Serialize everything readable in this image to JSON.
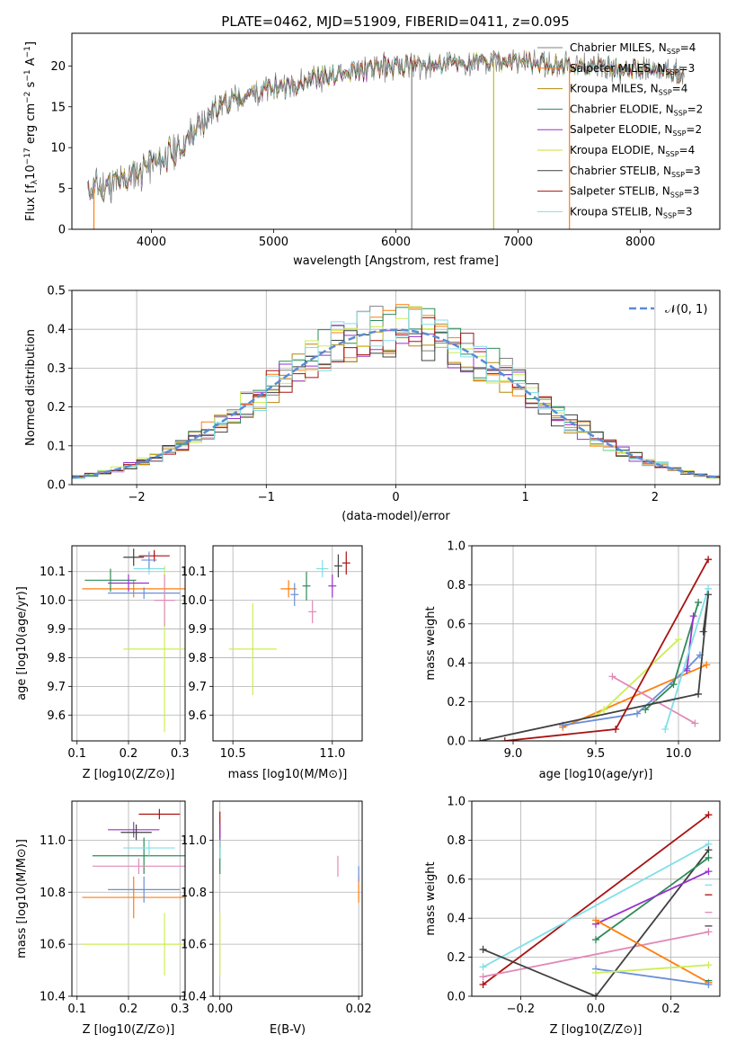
{
  "figure": {
    "title": "PLATE=0462, MJD=51909, FIBERID=0411, z=0.095"
  },
  "chart_data": [
    {
      "type": "line",
      "id": "spectrum",
      "xlabel": "wavelength [Angstrom, rest frame]",
      "ylabel": "Flux [f_λ 10^-17 erg cm^-2 s^-1 A^-1]",
      "xlim": [
        3350,
        8650
      ],
      "ylim": [
        0,
        24
      ],
      "xticks": [
        4000,
        5000,
        6000,
        7000,
        8000
      ],
      "yticks": [
        0,
        5,
        10,
        15,
        20
      ],
      "grid": false,
      "legend_position": "top-right",
      "observed_color": "#7f7f7f",
      "continuum_anchors": [
        [
          3480,
          5.0
        ],
        [
          3700,
          5.5
        ],
        [
          3900,
          7.0
        ],
        [
          4100,
          8.5
        ],
        [
          4300,
          11.0
        ],
        [
          4500,
          14.5
        ],
        [
          4700,
          16.0
        ],
        [
          4900,
          17.0
        ],
        [
          5100,
          17.5
        ],
        [
          5300,
          18.5
        ],
        [
          5600,
          19.0
        ],
        [
          5900,
          19.8
        ],
        [
          6200,
          20.2
        ],
        [
          6500,
          20.3
        ],
        [
          6800,
          20.5
        ],
        [
          7100,
          20.4
        ],
        [
          7500,
          20.0
        ],
        [
          8000,
          19.5
        ],
        [
          8400,
          19.0
        ]
      ],
      "observed_range": [
        3480,
        8360
      ],
      "series": [
        {
          "name": "Chabrier MILES, N_SSP=4",
          "label_main": "Chabrier MILES, N",
          "label_sub": "SSP",
          "label_tail": "=4",
          "color": "#808080"
        },
        {
          "name": "Salpeter MILES, N_SSP=3",
          "label_main": "Salpeter MILES, N",
          "label_sub": "SSP",
          "label_tail": "=3",
          "color": "#ff7f0e"
        },
        {
          "name": "Kroupa MILES, N_SSP=4",
          "label_main": "Kroupa MILES, N",
          "label_sub": "SSP",
          "label_tail": "=4",
          "color": "#b8860b"
        },
        {
          "name": "Chabrier ELODIE, N_SSP=2",
          "label_main": "Chabrier ELODIE, N",
          "label_sub": "SSP",
          "label_tail": "=2",
          "color": "#2e8b57"
        },
        {
          "name": "Salpeter ELODIE, N_SSP=2",
          "label_main": "Salpeter ELODIE, N",
          "label_sub": "SSP",
          "label_tail": "=2",
          "color": "#9932cc"
        },
        {
          "name": "Kroupa ELODIE, N_SSP=4",
          "label_main": "Kroupa ELODIE, N",
          "label_sub": "SSP",
          "label_tail": "=4",
          "color": "#ccdd33"
        },
        {
          "name": "Chabrier STELIB, N_SSP=3",
          "label_main": "Chabrier STELIB, N",
          "label_sub": "SSP",
          "label_tail": "=3",
          "color": "#404040"
        },
        {
          "name": "Salpeter STELIB, N_SSP=3",
          "label_main": "Salpeter STELIB, N",
          "label_sub": "SSP",
          "label_tail": "=3",
          "color": "#aa1111"
        },
        {
          "name": "Kroupa STELIB, N_SSP=3",
          "label_main": "Kroupa STELIB, N",
          "label_sub": "SSP",
          "label_tail": "=3",
          "color": "#7fdfe8"
        }
      ],
      "spikes": [
        {
          "x": 6130,
          "color": "#808080"
        },
        {
          "x": 6800,
          "color": "#b8c020"
        },
        {
          "x": 7420,
          "color": "#ff7f0e"
        },
        {
          "x": 3530,
          "color": "#ff7f0e"
        }
      ]
    },
    {
      "type": "histogram",
      "id": "residuals",
      "xlabel": "(data-model)/error",
      "ylabel": "Normed distribution",
      "xlim": [
        -2.5,
        2.5
      ],
      "ylim": [
        0,
        0.5
      ],
      "xticks": [
        -2,
        -1,
        0,
        1,
        2
      ],
      "yticks": [
        0.0,
        0.1,
        0.2,
        0.3,
        0.4,
        0.5
      ],
      "grid": true,
      "bin_width": 0.1,
      "legend": [
        {
          "name": "N(0,1)",
          "label": "𝒩(0, 1)",
          "color": "#5b8bd6",
          "style": "dashed"
        }
      ],
      "legend_position": "top-right",
      "gaussian": {
        "mean": 0,
        "sigma": 1
      },
      "series_colors": [
        "#808080",
        "#ff7f0e",
        "#b8860b",
        "#2e8b57",
        "#9932cc",
        "#ccee55",
        "#404040",
        "#aa1111",
        "#7fdfe8"
      ],
      "noise_seed": 7
    },
    {
      "type": "scatter-errorbar",
      "id": "age-vs-z",
      "xlabel": "Z [log10(Z/Z⊙)]",
      "ylabel": "age [log10(age/yr)]",
      "xlim": [
        0.09,
        0.31
      ],
      "ylim": [
        9.51,
        10.19
      ],
      "xticks": [
        0.1,
        0.2,
        0.3
      ],
      "yticks": [
        9.6,
        9.7,
        9.8,
        9.9,
        10.0,
        10.1
      ],
      "grid": true,
      "points": [
        {
          "x": 0.27,
          "y": 9.83,
          "xerr": 0.08,
          "yerr": 0.29,
          "color": "#ccee55"
        },
        {
          "x": 0.21,
          "y": 10.04,
          "xerr": 0.1,
          "yerr": 0.03,
          "color": "#ff7f0e"
        },
        {
          "x": 0.23,
          "y": 10.025,
          "xerr": 0.07,
          "yerr": 0.02,
          "color": "#6a8fd8"
        },
        {
          "x": 0.165,
          "y": 10.07,
          "xerr": 0.05,
          "yerr": 0.04,
          "color": "#2e8b57"
        },
        {
          "x": 0.2,
          "y": 10.06,
          "xerr": 0.04,
          "yerr": 0.03,
          "color": "#9932cc"
        },
        {
          "x": 0.27,
          "y": 10.0,
          "xerr": 0.02,
          "yerr": 0.09,
          "color": "#e08ab8"
        },
        {
          "x": 0.24,
          "y": 10.11,
          "xerr": 0.03,
          "yerr": 0.02,
          "color": "#7fdfe8"
        },
        {
          "x": 0.21,
          "y": 10.15,
          "xerr": 0.02,
          "yerr": 0.03,
          "color": "#404040"
        },
        {
          "x": 0.25,
          "y": 10.155,
          "xerr": 0.03,
          "yerr": 0.02,
          "color": "#aa1111"
        },
        {
          "x": 0.24,
          "y": 10.14,
          "xerr": 0.015,
          "yerr": 0.03,
          "color": "#6a8fd8"
        }
      ]
    },
    {
      "type": "scatter-errorbar",
      "id": "age-vs-mass",
      "xlabel": "mass [log10(M/M⊙)]",
      "ylabel": "",
      "xlim": [
        10.4,
        11.15
      ],
      "ylim": [
        9.51,
        10.19
      ],
      "xticks": [
        10.5,
        11.0
      ],
      "yticks": [
        9.6,
        9.7,
        9.8,
        9.9,
        10.0,
        10.1
      ],
      "grid": true,
      "points": [
        {
          "x": 10.6,
          "y": 9.83,
          "xerr": 0.12,
          "yerr": 0.16,
          "color": "#ccee55"
        },
        {
          "x": 10.78,
          "y": 10.04,
          "xerr": 0.04,
          "yerr": 0.03,
          "color": "#ff7f0e"
        },
        {
          "x": 10.81,
          "y": 10.02,
          "xerr": 0.02,
          "yerr": 0.04,
          "color": "#6a8fd8"
        },
        {
          "x": 10.87,
          "y": 10.05,
          "xerr": 0.02,
          "yerr": 0.05,
          "color": "#2e8b57"
        },
        {
          "x": 10.9,
          "y": 9.96,
          "xerr": 0.02,
          "yerr": 0.04,
          "color": "#e08ab8"
        },
        {
          "x": 10.95,
          "y": 10.11,
          "xerr": 0.03,
          "yerr": 0.03,
          "color": "#7fdfe8"
        },
        {
          "x": 11.03,
          "y": 10.12,
          "xerr": 0.02,
          "yerr": 0.04,
          "color": "#404040"
        },
        {
          "x": 11.07,
          "y": 10.13,
          "xerr": 0.02,
          "yerr": 0.04,
          "color": "#aa1111"
        },
        {
          "x": 11.0,
          "y": 10.05,
          "xerr": 0.02,
          "yerr": 0.04,
          "color": "#9932cc"
        }
      ]
    },
    {
      "type": "line",
      "id": "weight-vs-age",
      "xlabel": "age [log10(age/yr)]",
      "ylabel": "mass weight",
      "xlim": [
        8.75,
        10.25
      ],
      "ylim": [
        0,
        1.0
      ],
      "xticks": [
        9.0,
        9.5,
        10.0
      ],
      "yticks": [
        0.0,
        0.2,
        0.4,
        0.6,
        0.8,
        1.0
      ],
      "grid": true,
      "series": [
        {
          "color": "#ff7f0e",
          "points": [
            [
              9.3,
              0.07
            ],
            [
              10.17,
              0.39
            ]
          ]
        },
        {
          "color": "#6a8fd8",
          "points": [
            [
              9.3,
              0.08
            ],
            [
              9.75,
              0.14
            ],
            [
              10.05,
              0.37
            ],
            [
              10.13,
              0.44
            ]
          ]
        },
        {
          "color": "#ccee55",
          "points": [
            [
              9.5,
              0.13
            ],
            [
              9.55,
              0.16
            ],
            [
              10.0,
              0.52
            ]
          ]
        },
        {
          "color": "#2e8b57",
          "points": [
            [
              9.8,
              0.16
            ],
            [
              9.97,
              0.29
            ],
            [
              10.12,
              0.71
            ]
          ]
        },
        {
          "color": "#9932cc",
          "points": [
            [
              10.05,
              0.36
            ],
            [
              10.09,
              0.64
            ]
          ]
        },
        {
          "color": "#e08ab8",
          "points": [
            [
              9.6,
              0.33
            ],
            [
              10.1,
              0.09
            ]
          ]
        },
        {
          "color": "#7fdfe8",
          "points": [
            [
              9.92,
              0.06
            ],
            [
              10.18,
              0.78
            ]
          ]
        },
        {
          "color": "#404040",
          "points": [
            [
              8.8,
              0.0
            ],
            [
              10.12,
              0.24
            ],
            [
              10.18,
              0.75
            ],
            [
              10.15,
              0.56
            ]
          ]
        },
        {
          "color": "#aa1111",
          "points": [
            [
              8.95,
              0.0
            ],
            [
              9.62,
              0.06
            ],
            [
              10.18,
              0.93
            ]
          ]
        }
      ]
    },
    {
      "type": "scatter-errorbar",
      "id": "mass-vs-z",
      "xlabel": "Z [log10(Z/Z⊙)]",
      "ylabel": "mass [log10(M/M⊙)]",
      "xlim": [
        0.09,
        0.31
      ],
      "ylim": [
        10.4,
        11.15
      ],
      "xticks": [
        0.1,
        0.2,
        0.3
      ],
      "yticks": [
        10.4,
        10.6,
        10.8,
        11.0
      ],
      "grid": true,
      "points": [
        {
          "x": 0.27,
          "y": 10.6,
          "xerr": 0.16,
          "yerr": 0.12,
          "color": "#ccee55"
        },
        {
          "x": 0.21,
          "y": 10.78,
          "xerr": 0.1,
          "yerr": 0.08,
          "color": "#ff7f0e"
        },
        {
          "x": 0.23,
          "y": 10.81,
          "xerr": 0.07,
          "yerr": 0.05,
          "color": "#6a8fd8"
        },
        {
          "x": 0.23,
          "y": 10.94,
          "xerr": 0.1,
          "yerr": 0.07,
          "color": "#2e8b57"
        },
        {
          "x": 0.22,
          "y": 10.9,
          "xerr": 0.09,
          "yerr": 0.03,
          "color": "#e08ab8"
        },
        {
          "x": 0.24,
          "y": 10.97,
          "xerr": 0.05,
          "yerr": 0.03,
          "color": "#7fdfe8"
        },
        {
          "x": 0.21,
          "y": 11.04,
          "xerr": 0.05,
          "yerr": 0.03,
          "color": "#9932cc"
        },
        {
          "x": 0.215,
          "y": 11.03,
          "xerr": 0.03,
          "yerr": 0.03,
          "color": "#404040"
        },
        {
          "x": 0.26,
          "y": 11.1,
          "xerr": 0.04,
          "yerr": 0.02,
          "color": "#aa1111"
        }
      ]
    },
    {
      "type": "scatter-errorbar",
      "id": "mass-vs-ebv",
      "xlabel": "E(B-V)",
      "ylabel": "",
      "xlim": [
        -0.001,
        0.0205
      ],
      "ylim": [
        10.4,
        11.15
      ],
      "xticks": [
        0.0,
        0.02
      ],
      "yticks": [
        10.4,
        10.6,
        10.8,
        11.0
      ],
      "grid": true,
      "points": [
        {
          "x": 0.0,
          "y": 10.6,
          "xerr": 0,
          "yerr": 0.12,
          "color": "#ccee55"
        },
        {
          "x": 0.0,
          "y": 10.94,
          "xerr": 0,
          "yerr": 0.07,
          "color": "#2e8b57"
        },
        {
          "x": 0.0,
          "y": 11.04,
          "xerr": 0,
          "yerr": 0.07,
          "color": "#aa1111"
        },
        {
          "x": 0.0,
          "y": 10.97,
          "xerr": 0,
          "yerr": 0.04,
          "color": "#7fdfe8"
        },
        {
          "x": 0.0,
          "y": 11.03,
          "xerr": 0,
          "yerr": 0.03,
          "color": "#9932cc"
        },
        {
          "x": 0.017,
          "y": 10.9,
          "xerr": 0,
          "yerr": 0.04,
          "color": "#e08ab8"
        },
        {
          "x": 0.02,
          "y": 10.81,
          "xerr": 0,
          "yerr": 0.05,
          "color": "#ff7f0e"
        },
        {
          "x": 0.02,
          "y": 10.87,
          "xerr": 0,
          "yerr": 0.03,
          "color": "#6a8fd8"
        }
      ]
    },
    {
      "type": "line",
      "id": "weight-vs-z",
      "xlabel": "Z [log10(Z/Z⊙)]",
      "ylabel": "mass weight",
      "xlim": [
        -0.33,
        0.33
      ],
      "ylim": [
        0,
        1.0
      ],
      "xticks": [
        -0.2,
        0.0,
        0.2
      ],
      "yticks": [
        0.0,
        0.2,
        0.4,
        0.6,
        0.8,
        1.0
      ],
      "grid": true,
      "series": [
        {
          "color": "#aa1111",
          "points": [
            [
              -0.3,
              0.06
            ],
            [
              0.3,
              0.93
            ]
          ]
        },
        {
          "color": "#7fdfe8",
          "points": [
            [
              -0.3,
              0.15
            ],
            [
              0.3,
              0.78
            ]
          ]
        },
        {
          "color": "#e08ab8",
          "points": [
            [
              -0.3,
              0.1
            ],
            [
              0.3,
              0.33
            ]
          ]
        },
        {
          "color": "#404040",
          "points": [
            [
              -0.3,
              0.24
            ],
            [
              0.0,
              0.0
            ],
            [
              0.3,
              0.75
            ]
          ]
        },
        {
          "color": "#2e8b57",
          "points": [
            [
              0.0,
              0.29
            ],
            [
              0.3,
              0.71
            ]
          ]
        },
        {
          "color": "#9932cc",
          "points": [
            [
              0.0,
              0.37
            ],
            [
              0.3,
              0.64
            ]
          ]
        },
        {
          "color": "#ff7f0e",
          "points": [
            [
              0.0,
              0.39
            ],
            [
              0.3,
              0.07
            ]
          ]
        },
        {
          "color": "#6a8fd8",
          "points": [
            [
              0.0,
              0.14
            ],
            [
              0.3,
              0.06
            ]
          ]
        },
        {
          "color": "#ccee55",
          "points": [
            [
              0.0,
              0.12
            ],
            [
              0.3,
              0.16
            ]
          ]
        }
      ],
      "edge_ticks": [
        0.52,
        0.57,
        0.43,
        0.36,
        0.08
      ]
    }
  ]
}
